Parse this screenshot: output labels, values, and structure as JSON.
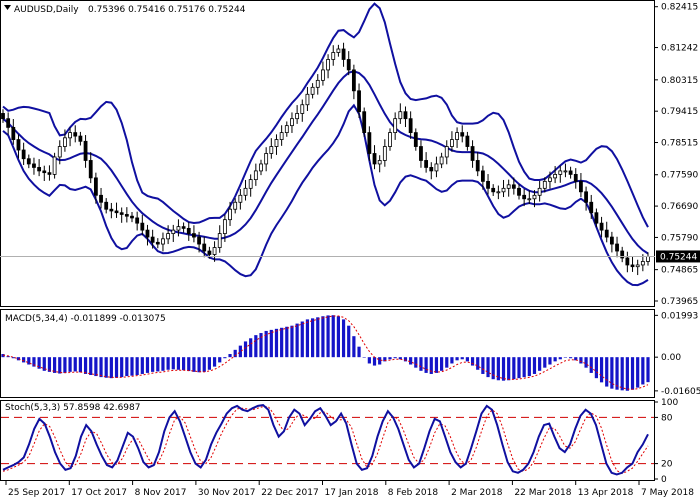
{
  "chart_data": [
    {
      "type": "candlestick",
      "panel": "price",
      "symbol_label": "AUDUSD,Daily",
      "ohlc_label": "0.75396 0.75416 0.75176 0.75244",
      "open": 0.75396,
      "high": 0.75416,
      "low": 0.75176,
      "close": 0.75244,
      "last_price_label": "0.75244",
      "yticks": [
        "0.82415",
        "0.81242",
        "0.80315",
        "0.79415",
        "0.78515",
        "0.77590",
        "0.76690",
        "0.75790",
        "0.74865",
        "0.73965"
      ],
      "ylim": [
        0.7385,
        0.8255
      ],
      "close_series": [
        0.792,
        0.7895,
        0.786,
        0.783,
        0.7805,
        0.779,
        0.778,
        0.777,
        0.7765,
        0.776,
        0.781,
        0.784,
        0.7865,
        0.788,
        0.787,
        0.7855,
        0.78,
        0.775,
        0.77,
        0.768,
        0.766,
        0.7655,
        0.765,
        0.7645,
        0.764,
        0.7635,
        0.762,
        0.76,
        0.758,
        0.7565,
        0.756,
        0.7575,
        0.759,
        0.76,
        0.761,
        0.7605,
        0.759,
        0.758,
        0.756,
        0.754,
        0.753,
        0.755,
        0.759,
        0.763,
        0.766,
        0.768,
        0.77,
        0.772,
        0.7745,
        0.777,
        0.779,
        0.782,
        0.784,
        0.786,
        0.788,
        0.79,
        0.792,
        0.7935,
        0.796,
        0.799,
        0.801,
        0.803,
        0.806,
        0.809,
        0.811,
        0.812,
        0.809,
        0.806,
        0.8,
        0.794,
        0.788,
        0.782,
        0.779,
        0.78,
        0.784,
        0.788,
        0.792,
        0.794,
        0.792,
        0.788,
        0.784,
        0.78,
        0.778,
        0.777,
        0.779,
        0.781,
        0.784,
        0.786,
        0.788,
        0.787,
        0.784,
        0.78,
        0.777,
        0.774,
        0.772,
        0.771,
        0.771,
        0.772,
        0.773,
        0.772,
        0.77,
        0.769,
        0.769,
        0.77,
        0.772,
        0.774,
        0.775,
        0.776,
        0.777,
        0.777,
        0.776,
        0.774,
        0.771,
        0.768,
        0.765,
        0.762,
        0.76,
        0.758,
        0.756,
        0.754,
        0.752,
        0.75,
        0.7495,
        0.75,
        0.751,
        0.7524
      ]
    },
    {
      "type": "histogram",
      "panel": "macd",
      "label": "MACD(5,34,4) -0.011899 -0.013075",
      "yticks": [
        "0.01993",
        "0.00",
        "-0.016055"
      ],
      "ylim": [
        -0.0185,
        0.022
      ],
      "values": [
        0.0015,
        0.0005,
        -0.0005,
        -0.0015,
        -0.0025,
        -0.0035,
        -0.0045,
        -0.0055,
        -0.0065,
        -0.007,
        -0.0075,
        -0.0078,
        -0.0075,
        -0.007,
        -0.0068,
        -0.0072,
        -0.008,
        -0.0085,
        -0.009,
        -0.0095,
        -0.0098,
        -0.01,
        -0.0098,
        -0.0095,
        -0.009,
        -0.0088,
        -0.0085,
        -0.008,
        -0.0075,
        -0.007,
        -0.0068,
        -0.0065,
        -0.006,
        -0.0058,
        -0.006,
        -0.0062,
        -0.0066,
        -0.007,
        -0.0072,
        -0.007,
        -0.006,
        -0.0045,
        -0.0025,
        -0.0005,
        0.0015,
        0.0035,
        0.0055,
        0.0075,
        0.009,
        0.0105,
        0.0115,
        0.0125,
        0.013,
        0.0135,
        0.014,
        0.0145,
        0.015,
        0.016,
        0.017,
        0.018,
        0.0185,
        0.019,
        0.0195,
        0.0199,
        0.02,
        0.0195,
        0.018,
        0.015,
        0.01,
        0.005,
        0.0,
        -0.003,
        -0.004,
        -0.0035,
        -0.002,
        -0.001,
        -0.0005,
        -0.001,
        -0.002,
        -0.0035,
        -0.005,
        -0.0065,
        -0.0075,
        -0.008,
        -0.0075,
        -0.0065,
        -0.005,
        -0.003,
        -0.0015,
        -0.001,
        -0.002,
        -0.004,
        -0.006,
        -0.008,
        -0.0095,
        -0.0105,
        -0.011,
        -0.0112,
        -0.011,
        -0.0105,
        -0.01,
        -0.0095,
        -0.009,
        -0.008,
        -0.0065,
        -0.005,
        -0.0035,
        -0.002,
        -0.001,
        0.0,
        -0.0005,
        -0.0015,
        -0.003,
        -0.005,
        -0.0075,
        -0.01,
        -0.012,
        -0.014,
        -0.015,
        -0.0155,
        -0.0158,
        -0.016,
        -0.0155,
        -0.0145,
        -0.013,
        -0.0119
      ],
      "signal": [
        0.001,
        0.0006,
        0.0,
        -0.0008,
        -0.0017,
        -0.0027,
        -0.0037,
        -0.0046,
        -0.0055,
        -0.0062,
        -0.0068,
        -0.0073,
        -0.0074,
        -0.0073,
        -0.0071,
        -0.0071,
        -0.0074,
        -0.0079,
        -0.0083,
        -0.0088,
        -0.0093,
        -0.0096,
        -0.0097,
        -0.0096,
        -0.0094,
        -0.0091,
        -0.0088,
        -0.0085,
        -0.0081,
        -0.0076,
        -0.0073,
        -0.007,
        -0.0066,
        -0.0063,
        -0.0062,
        -0.0062,
        -0.0064,
        -0.0066,
        -0.0069,
        -0.007,
        -0.0066,
        -0.0058,
        -0.0045,
        -0.0029,
        -0.0011,
        0.0007,
        0.0026,
        0.0045,
        0.0063,
        0.008,
        0.0094,
        0.0107,
        0.0117,
        0.0125,
        0.0132,
        0.0138,
        0.0143,
        0.015,
        0.0158,
        0.0167,
        0.0174,
        0.0181,
        0.0187,
        0.0192,
        0.0196,
        0.0196,
        0.019,
        0.0174,
        0.0145,
        0.0107,
        0.0064,
        0.0027,
        0.0,
        -0.0014,
        -0.0016,
        -0.0014,
        -0.001,
        -0.001,
        -0.0014,
        -0.0022,
        -0.0033,
        -0.0046,
        -0.0058,
        -0.0067,
        -0.0071,
        -0.0069,
        -0.0061,
        -0.0049,
        -0.0035,
        -0.0025,
        -0.0023,
        -0.003,
        -0.0042,
        -0.0057,
        -0.0072,
        -0.0085,
        -0.0095,
        -0.0102,
        -0.0106,
        -0.0106,
        -0.0104,
        -0.01,
        -0.0096,
        -0.009,
        -0.008,
        -0.0068,
        -0.0055,
        -0.0041,
        -0.0029,
        -0.0017,
        -0.0012,
        -0.0013,
        -0.002,
        -0.0032,
        -0.0049,
        -0.0069,
        -0.0089,
        -0.0109,
        -0.0125,
        -0.0137,
        -0.0146,
        -0.0152,
        -0.0153,
        -0.015,
        -0.0142,
        -0.0131
      ]
    },
    {
      "type": "line",
      "panel": "stochastic",
      "label": "Stoch(5,3,3) 57.8598 42.6987",
      "yticks": [
        "100",
        "80",
        "20",
        "0"
      ],
      "ylim": [
        0,
        100
      ],
      "levels": [
        20,
        80
      ],
      "x_tick_labels": [
        "25 Sep 2017",
        "17 Oct 2017",
        "8 Nov 2017",
        "30 Nov 2017",
        "22 Dec 2017",
        "17 Jan 2018",
        "8 Feb 2018",
        "2 Mar 2018",
        "22 Mar 2018",
        "13 Apr 2018",
        "7 May 2018"
      ],
      "main": [
        12,
        15,
        18,
        22,
        28,
        45,
        65,
        78,
        72,
        55,
        35,
        20,
        12,
        14,
        30,
        55,
        70,
        62,
        45,
        30,
        18,
        15,
        24,
        42,
        60,
        55,
        40,
        22,
        15,
        18,
        35,
        62,
        80,
        88,
        75,
        55,
        35,
        20,
        15,
        25,
        45,
        60,
        72,
        85,
        92,
        95,
        90,
        88,
        92,
        95,
        96,
        90,
        70,
        55,
        62,
        80,
        90,
        85,
        70,
        78,
        88,
        92,
        82,
        70,
        75,
        85,
        72,
        45,
        20,
        12,
        14,
        30,
        55,
        75,
        88,
        80,
        65,
        45,
        25,
        15,
        20,
        40,
        62,
        78,
        75,
        55,
        35,
        22,
        15,
        20,
        40,
        62,
        85,
        95,
        90,
        70,
        45,
        22,
        10,
        8,
        12,
        20,
        35,
        55,
        70,
        72,
        55,
        40,
        35,
        45,
        65,
        82,
        90,
        85,
        70,
        45,
        20,
        8,
        6,
        8,
        15,
        20,
        35,
        45,
        58
      ],
      "signal": [
        10,
        12,
        15,
        18,
        22,
        30,
        46,
        63,
        72,
        68,
        54,
        37,
        22,
        15,
        19,
        33,
        52,
        62,
        59,
        46,
        31,
        21,
        19,
        27,
        42,
        52,
        52,
        39,
        26,
        18,
        23,
        38,
        59,
        77,
        81,
        73,
        55,
        37,
        23,
        20,
        28,
        43,
        59,
        72,
        83,
        91,
        92,
        91,
        90,
        92,
        94,
        94,
        85,
        72,
        62,
        66,
        77,
        85,
        82,
        78,
        79,
        86,
        87,
        81,
        76,
        77,
        77,
        67,
        46,
        26,
        15,
        19,
        33,
        53,
        73,
        81,
        78,
        63,
        45,
        28,
        20,
        25,
        41,
        60,
        72,
        69,
        55,
        37,
        24,
        19,
        25,
        41,
        62,
        81,
        90,
        85,
        68,
        46,
        26,
        13,
        10,
        13,
        22,
        37,
        53,
        66,
        66,
        56,
        43,
        40,
        48,
        64,
        79,
        86,
        82,
        67,
        45,
        24,
        11,
        7,
        10,
        14,
        23,
        33,
        43
      ]
    }
  ]
}
